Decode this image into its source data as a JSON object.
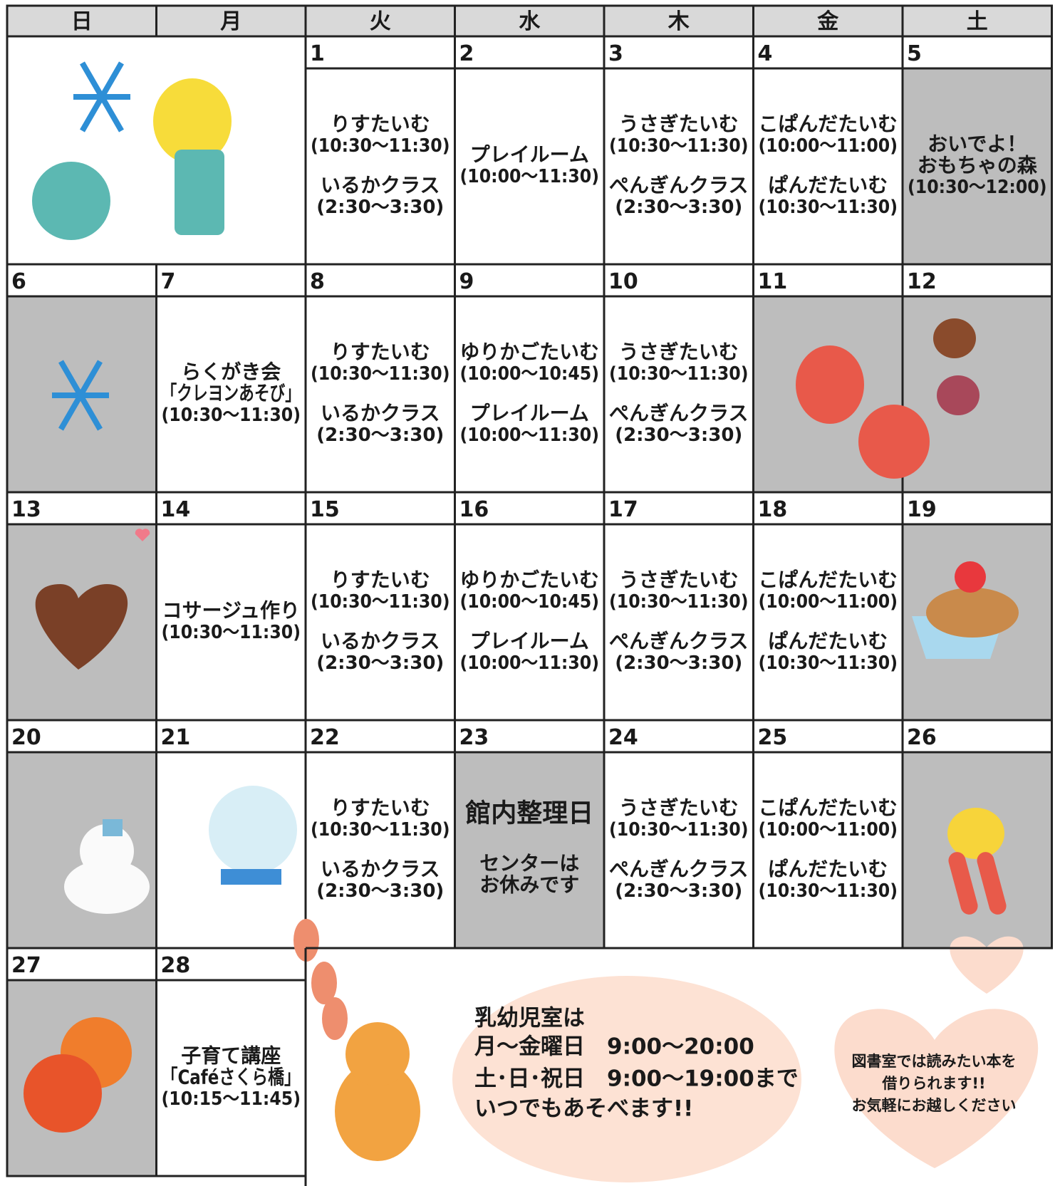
{
  "weekdays": [
    "日",
    "月",
    "火",
    "水",
    "木",
    "金",
    "土"
  ],
  "weeks": [
    [
      {
        "date": 1,
        "events": [
          {
            "lines": [
              "りすたいむ",
              "(10:30～11:30)"
            ]
          },
          {
            "lines": [
              "いるかクラス",
              "(2:30～3:30)"
            ]
          }
        ]
      },
      {
        "date": 2,
        "events": [
          {
            "lines": [
              "プレイルーム",
              "(10:00～11:30)"
            ]
          }
        ]
      },
      {
        "date": 3,
        "events": [
          {
            "lines": [
              "うさぎたいむ",
              "(10:30～11:30)"
            ]
          },
          {
            "lines": [
              "ぺんぎんクラス",
              "(2:30～3:30)"
            ]
          }
        ]
      },
      {
        "date": 4,
        "events": [
          {
            "lines": [
              "こぱんだたいむ",
              "(10:00～11:00)"
            ]
          },
          {
            "lines": [
              "ぱんだたいむ",
              "(10:30～11:30)"
            ]
          }
        ]
      },
      {
        "date": 5,
        "events": [
          {
            "lines": [
              "おいでよ！",
              "おもちゃの森",
              "(10:30～12:00)"
            ]
          }
        ]
      }
    ],
    [
      {
        "date": 6,
        "events": []
      },
      {
        "date": 7,
        "events": [
          {
            "lines": [
              "らくがき会",
              "「クレヨンあそび」",
              "(10:30～11:30)"
            ]
          }
        ]
      },
      {
        "date": 8,
        "events": [
          {
            "lines": [
              "りすたいむ",
              "(10:30～11:30)"
            ]
          },
          {
            "lines": [
              "いるかクラス",
              "(2:30～3:30)"
            ]
          }
        ]
      },
      {
        "date": 9,
        "events": [
          {
            "lines": [
              "ゆりかごたいむ",
              "(10:00～10:45)"
            ]
          },
          {
            "lines": [
              "プレイルーム",
              "(10:00～11:30)"
            ]
          }
        ]
      },
      {
        "date": 10,
        "events": [
          {
            "lines": [
              "うさぎたいむ",
              "(10:30～11:30)"
            ]
          },
          {
            "lines": [
              "ぺんぎんクラス",
              "(2:30～3:30)"
            ]
          }
        ]
      },
      {
        "date": 11,
        "events": []
      },
      {
        "date": 12,
        "events": []
      }
    ],
    [
      {
        "date": 13,
        "events": []
      },
      {
        "date": 14,
        "events": [
          {
            "lines": [
              "コサージュ作り",
              "(10:30～11:30)"
            ]
          }
        ]
      },
      {
        "date": 15,
        "events": [
          {
            "lines": [
              "りすたいむ",
              "(10:30～11:30)"
            ]
          },
          {
            "lines": [
              "いるかクラス",
              "(2:30～3:30)"
            ]
          }
        ]
      },
      {
        "date": 16,
        "events": [
          {
            "lines": [
              "ゆりかごたいむ",
              "(10:00～10:45)"
            ]
          },
          {
            "lines": [
              "プレイルーム",
              "(10:00～11:30)"
            ]
          }
        ]
      },
      {
        "date": 17,
        "events": [
          {
            "lines": [
              "うさぎたいむ",
              "(10:30～11:30)"
            ]
          },
          {
            "lines": [
              "ぺんぎんクラス",
              "(2:30～3:30)"
            ]
          }
        ]
      },
      {
        "date": 18,
        "events": [
          {
            "lines": [
              "こぱんだたいむ",
              "(10:00～11:00)"
            ]
          },
          {
            "lines": [
              "ぱんだたいむ",
              "(10:30～11:30)"
            ]
          }
        ]
      },
      {
        "date": 19,
        "events": []
      }
    ],
    [
      {
        "date": 20,
        "events": []
      },
      {
        "date": 21,
        "events": []
      },
      {
        "date": 22,
        "events": [
          {
            "lines": [
              "りすたいむ",
              "(10:30～11:30)"
            ]
          },
          {
            "lines": [
              "いるかクラス",
              "(2:30～3:30)"
            ]
          }
        ]
      },
      {
        "date": 23,
        "events": [
          {
            "lines": [
              "館内整理日"
            ]
          },
          {
            "lines": [
              "センターは",
              "お休みです"
            ]
          }
        ]
      },
      {
        "date": 24,
        "events": [
          {
            "lines": [
              "うさぎたいむ",
              "(10:30～11:30)"
            ]
          },
          {
            "lines": [
              "ぺんぎんクラス",
              "(2:30～3:30)"
            ]
          }
        ]
      },
      {
        "date": 25,
        "events": [
          {
            "lines": [
              "こぱんだたいむ",
              "(10:00～11:00)"
            ]
          },
          {
            "lines": [
              "ぱんだたいむ",
              "(10:30～11:30)"
            ]
          }
        ]
      },
      {
        "date": 26,
        "events": []
      }
    ],
    [
      {
        "date": 27,
        "events": []
      },
      {
        "date": 28,
        "events": [
          {
            "lines": [
              "子育て講座",
              "「Caféさくら橋」",
              "(10:15～11:45)"
            ]
          }
        ]
      }
    ]
  ],
  "info": {
    "lines": [
      "乳幼児室は",
      "月～金曜日　9:00～20:00",
      "土･日･祝日　9:00～19:00まで",
      "いつでもあそべます!!"
    ]
  },
  "library": {
    "lines": [
      "図書室では読みたい本を",
      "借りられます!!",
      "お気軽にお越しください"
    ]
  }
}
